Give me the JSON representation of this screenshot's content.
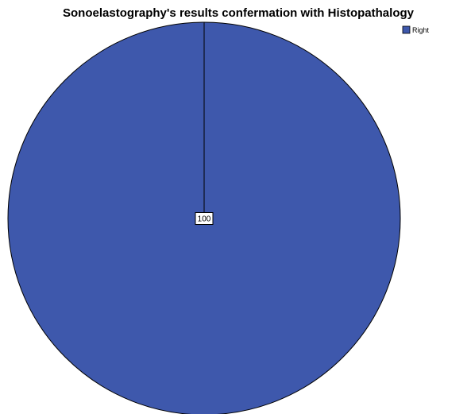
{
  "chart_data": {
    "type": "pie",
    "title": "Sonoelastography's results confermation with Histopathalogy",
    "categories": [
      "Right"
    ],
    "values": [
      100
    ],
    "series": [
      {
        "name": "Right",
        "values": [
          100
        ]
      }
    ],
    "slice_colors": [
      "#3e58ac"
    ],
    "outline_color": "#000000",
    "data_labels": [
      "100"
    ],
    "legend": {
      "placement": "top-right",
      "entries": [
        "Right"
      ]
    }
  }
}
